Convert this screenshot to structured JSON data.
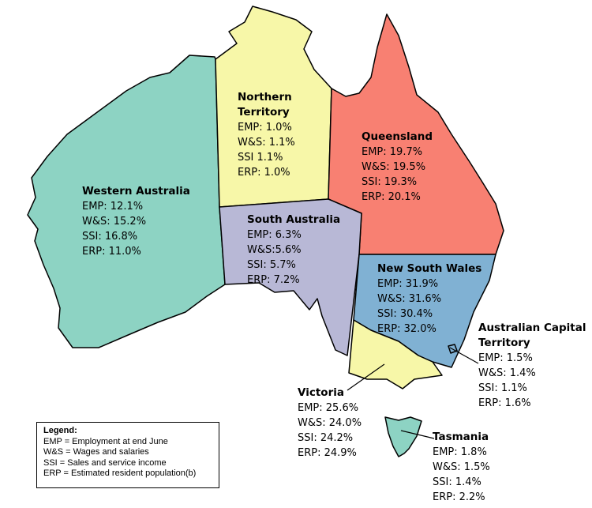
{
  "regions": [
    {
      "key": "wa",
      "name": "Western Australia",
      "color": "#8dd3c3",
      "stats": [
        "EMP: 12.1%",
        "W&S: 15.2%",
        "SSI: 16.8%",
        "ERP: 11.0%"
      ]
    },
    {
      "key": "nt",
      "name_lines": [
        "Northern",
        "Territory"
      ],
      "color": "#f7f7a8",
      "stats": [
        "EMP: 1.0%",
        "W&S: 1.1%",
        "SSI 1.1%",
        "ERP: 1.0%"
      ]
    },
    {
      "key": "qld",
      "name": "Queensland",
      "color": "#f88072",
      "stats": [
        "EMP: 19.7%",
        "W&S: 19.5%",
        "SSI: 19.3%",
        "ERP: 20.1%"
      ]
    },
    {
      "key": "sa",
      "name": "South Australia",
      "color": "#b8b8d6",
      "stats": [
        "EMP: 6.3%",
        "W&S:5.6%",
        "SSI: 5.7%",
        "ERP: 7.2%"
      ]
    },
    {
      "key": "nsw",
      "name": "New South Wales",
      "color": "#80b1d3",
      "stats": [
        "EMP: 31.9%",
        "W&S: 31.6%",
        "SSI: 30.4%",
        "ERP: 32.0%"
      ]
    },
    {
      "key": "act",
      "name_lines": [
        "Australian Capital",
        "Territory"
      ],
      "color": "#80b1d3",
      "stats": [
        "EMP: 1.5%",
        "W&S: 1.4%",
        "SSI: 1.1%",
        "ERP: 1.6%"
      ]
    },
    {
      "key": "vic",
      "name": "Victoria",
      "color": "#f7f7a8",
      "stats": [
        "EMP: 25.6%",
        "W&S: 24.0%",
        "SSI: 24.2%",
        "ERP: 24.9%"
      ]
    },
    {
      "key": "tas",
      "name": "Tasmania",
      "color": "#8dd3c3",
      "stats": [
        "EMP: 1.8%",
        "W&S: 1.5%",
        "SSI: 1.4%",
        "ERP: 2.2%"
      ]
    }
  ],
  "legend": {
    "title": "Legend:",
    "items": [
      "EMP = Employment at end June",
      "W&S = Wages and salaries",
      "SSI = Sales and service income",
      "ERP = Estimated resident population(b)"
    ]
  }
}
